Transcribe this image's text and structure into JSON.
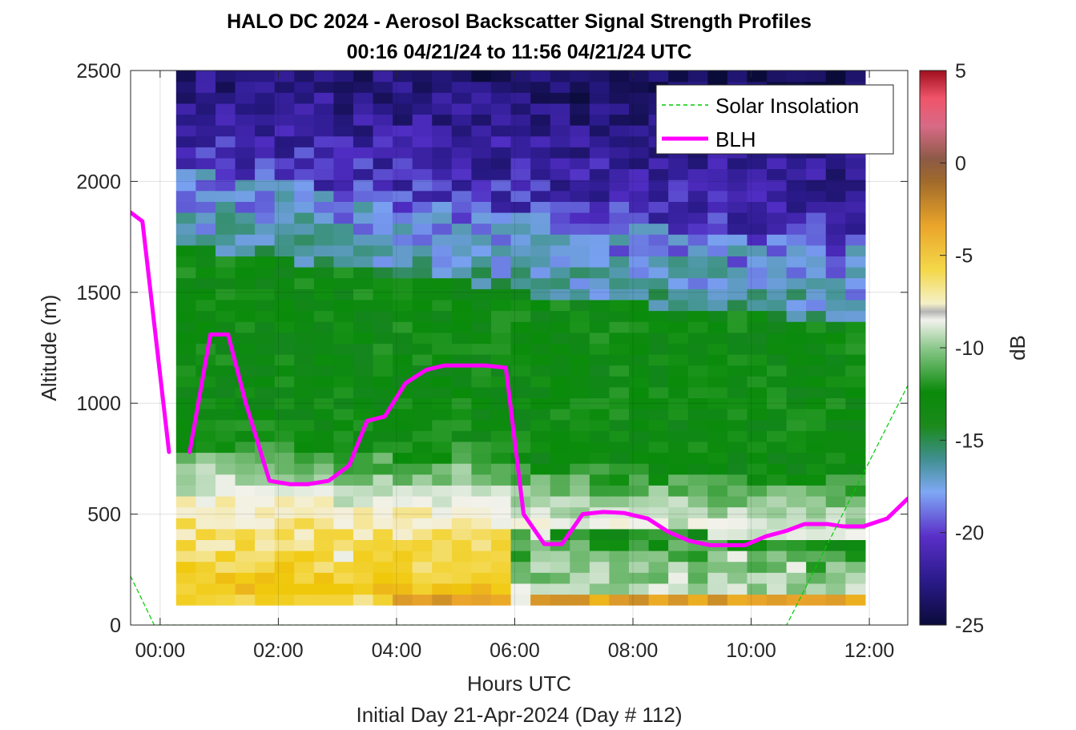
{
  "chart_data": {
    "type": "heatmap",
    "title": "HALO DC 2024 - Aerosol Backscatter Signal Strength Profiles",
    "subtitle": "00:16 04/21/24 to 11:56 04/21/24  UTC",
    "xlabel": "Hours UTC",
    "footer": "Initial Day 21-Apr-2024 (Day # 112)",
    "ylabel": "Altitude (m)",
    "colorbar_label": "dB",
    "xlim": [
      -0.5,
      12.65
    ],
    "ylim": [
      0,
      2500
    ],
    "x_ticks": [
      "00:00",
      "02:00",
      "04:00",
      "06:00",
      "08:00",
      "10:00",
      "12:00"
    ],
    "x_tick_values": [
      0,
      2,
      4,
      6,
      8,
      10,
      12
    ],
    "y_ticks": [
      "0",
      "500",
      "1000",
      "1500",
      "2000",
      "2500"
    ],
    "y_tick_values": [
      0,
      500,
      1000,
      1500,
      2000,
      2500
    ],
    "colorbar_ticks": [
      "5",
      "0",
      "-5",
      "-10",
      "-15",
      "-20",
      "-25"
    ],
    "colorbar_tick_values": [
      5,
      0,
      -5,
      -10,
      -15,
      -20,
      -25
    ],
    "clim": [
      -25,
      5
    ],
    "grid": true,
    "legend_placement": "top-right",
    "heatmap": {
      "time_start_hours": 0.27,
      "time_end_hours": 11.93,
      "altitude_bottom_m": 90,
      "altitude_top_m": 2500,
      "description_of_field": "Strong signal near surface (about -5 to 0 dB) below ~500 m, green (-14 to -16 dB) mixed layer up to ~1700 m early and ~1400 m later, blue/purple (-20 to -24 dB) aloft"
    },
    "series": [
      {
        "name": "BLH",
        "color": "#FF00FF",
        "x": [
          -0.5,
          -0.3,
          0.15,
          null,
          0.5,
          0.85,
          1.15,
          1.45,
          1.85,
          2.2,
          2.5,
          2.85,
          3.2,
          3.5,
          3.8,
          4.15,
          4.5,
          4.8,
          5.1,
          5.5,
          5.85,
          6.15,
          6.5,
          6.8,
          7.15,
          7.5,
          7.85,
          8.25,
          8.6,
          8.95,
          9.3,
          9.6,
          9.9,
          10.25,
          10.6,
          10.9,
          11.3,
          11.55,
          11.9,
          12.3,
          12.65
        ],
        "y": [
          1860,
          1820,
          780,
          null,
          780,
          1310,
          1310,
          1000,
          650,
          635,
          635,
          650,
          720,
          920,
          940,
          1090,
          1150,
          1170,
          1170,
          1170,
          1160,
          500,
          365,
          365,
          500,
          510,
          505,
          480,
          420,
          380,
          360,
          360,
          360,
          400,
          425,
          455,
          455,
          445,
          445,
          480,
          570
        ]
      },
      {
        "name": "Solar Insolation",
        "color": "#00CC00",
        "x": [
          -0.5,
          -0.1,
          0.0,
          10.5,
          10.6,
          12.65
        ],
        "y": [
          220,
          0,
          0,
          0,
          0,
          1080
        ]
      }
    ]
  }
}
